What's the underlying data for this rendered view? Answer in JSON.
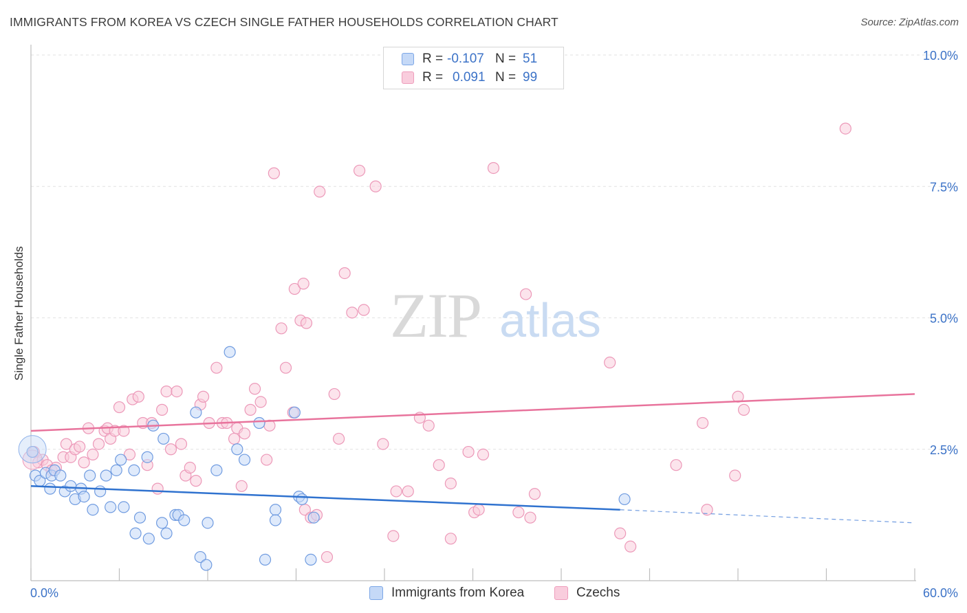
{
  "title": "IMMIGRANTS FROM KOREA VS CZECH SINGLE FATHER HOUSEHOLDS CORRELATION CHART",
  "source": "Source: ZipAtlas.com",
  "watermark": {
    "zip": "ZIP",
    "atlas": "atlas"
  },
  "colors": {
    "blue": "#5b8fdc",
    "pink": "#e8739c",
    "blue_fill": "#c5d9f7",
    "pink_fill": "#f9cddd",
    "axis_label": "#3b72c7"
  },
  "legend": {
    "rows": [
      {
        "r_label": "R = ",
        "r_value": "-0.107",
        "n_label": "N = ",
        "n_value": "51"
      },
      {
        "r_label": "R = ",
        "r_value": "0.091",
        "n_label": "N = ",
        "n_value": "99"
      }
    ]
  },
  "bottom_legend": [
    "Immigrants from Korea",
    "Czechs"
  ],
  "chart_data": {
    "type": "scatter",
    "title": "IMMIGRANTS FROM KOREA VS CZECH SINGLE FATHER HOUSEHOLDS CORRELATION CHART",
    "xlabel": "",
    "ylabel": "Single Father Households",
    "xlim": [
      0,
      60
    ],
    "ylim": [
      0,
      10
    ],
    "x_tick_labels": [
      "0.0%",
      "60.0%"
    ],
    "y_ticks": [
      2.5,
      5.0,
      7.5,
      10.0
    ],
    "y_tick_labels": [
      "2.5%",
      "5.0%",
      "7.5%",
      "10.0%"
    ],
    "grid": "horizontal dashed",
    "legend_position": "top-center",
    "series": [
      {
        "name": "Immigrants from Korea",
        "color": "#5b8fdc",
        "r": -0.107,
        "n": 51,
        "trend": {
          "x0": 0,
          "y0": 1.8,
          "x1": 40,
          "y1": 1.35,
          "dash_to_x": 60,
          "dash_to_y": 1.1
        },
        "points": [
          [
            0.1,
            2.45
          ],
          [
            0.3,
            2.0
          ],
          [
            0.6,
            1.9
          ],
          [
            1.0,
            2.05
          ],
          [
            1.3,
            1.75
          ],
          [
            1.4,
            2.0
          ],
          [
            1.6,
            2.1
          ],
          [
            2.0,
            2.0
          ],
          [
            2.3,
            1.7
          ],
          [
            2.7,
            1.8
          ],
          [
            3.0,
            1.55
          ],
          [
            3.4,
            1.75
          ],
          [
            3.6,
            1.6
          ],
          [
            4.0,
            2.0
          ],
          [
            4.2,
            1.35
          ],
          [
            4.7,
            1.7
          ],
          [
            5.1,
            2.0
          ],
          [
            5.4,
            1.4
          ],
          [
            5.8,
            2.1
          ],
          [
            6.1,
            2.3
          ],
          [
            6.3,
            1.4
          ],
          [
            7.0,
            2.1
          ],
          [
            7.1,
            0.9
          ],
          [
            7.4,
            1.2
          ],
          [
            7.9,
            2.35
          ],
          [
            8.0,
            0.8
          ],
          [
            8.3,
            2.95
          ],
          [
            8.9,
            1.1
          ],
          [
            9.0,
            2.7
          ],
          [
            9.2,
            0.9
          ],
          [
            9.8,
            1.25
          ],
          [
            10.0,
            1.25
          ],
          [
            10.4,
            1.15
          ],
          [
            11.2,
            3.2
          ],
          [
            11.5,
            0.45
          ],
          [
            11.9,
            0.3
          ],
          [
            12.0,
            1.1
          ],
          [
            12.6,
            2.1
          ],
          [
            13.5,
            4.35
          ],
          [
            14.0,
            2.5
          ],
          [
            14.5,
            2.3
          ],
          [
            15.5,
            3.0
          ],
          [
            15.9,
            0.4
          ],
          [
            16.6,
            1.35
          ],
          [
            16.6,
            1.15
          ],
          [
            17.9,
            3.2
          ],
          [
            18.2,
            1.6
          ],
          [
            18.4,
            1.55
          ],
          [
            19.0,
            0.4
          ],
          [
            19.2,
            1.2
          ],
          [
            40.3,
            1.55
          ]
        ]
      },
      {
        "name": "Czechs",
        "color": "#e8739c",
        "r": 0.091,
        "n": 99,
        "trend": {
          "x0": 0,
          "y0": 2.85,
          "x1": 60,
          "y1": 3.55
        },
        "points": [
          [
            0.2,
            2.45
          ],
          [
            0.5,
            2.25
          ],
          [
            0.8,
            2.3
          ],
          [
            1.1,
            2.2
          ],
          [
            1.4,
            2.1
          ],
          [
            1.7,
            2.15
          ],
          [
            2.2,
            2.35
          ],
          [
            2.4,
            2.6
          ],
          [
            2.7,
            2.35
          ],
          [
            3.0,
            2.5
          ],
          [
            3.3,
            2.55
          ],
          [
            3.6,
            2.25
          ],
          [
            3.9,
            2.9
          ],
          [
            4.2,
            2.4
          ],
          [
            4.6,
            2.6
          ],
          [
            5.0,
            2.85
          ],
          [
            5.2,
            2.9
          ],
          [
            5.4,
            2.7
          ],
          [
            5.7,
            2.85
          ],
          [
            6.0,
            3.3
          ],
          [
            6.3,
            2.85
          ],
          [
            6.7,
            2.4
          ],
          [
            6.9,
            3.45
          ],
          [
            7.3,
            3.5
          ],
          [
            7.6,
            3.0
          ],
          [
            7.9,
            2.2
          ],
          [
            8.2,
            3.0
          ],
          [
            8.6,
            1.75
          ],
          [
            8.9,
            3.25
          ],
          [
            9.2,
            3.6
          ],
          [
            9.5,
            2.5
          ],
          [
            9.9,
            3.6
          ],
          [
            10.2,
            2.6
          ],
          [
            10.5,
            2.0
          ],
          [
            10.8,
            2.15
          ],
          [
            11.2,
            1.9
          ],
          [
            11.5,
            3.35
          ],
          [
            11.7,
            3.5
          ],
          [
            12.1,
            3.0
          ],
          [
            12.6,
            4.05
          ],
          [
            13.0,
            3.0
          ],
          [
            13.3,
            3.0
          ],
          [
            13.8,
            2.7
          ],
          [
            14.0,
            2.9
          ],
          [
            14.3,
            1.8
          ],
          [
            14.5,
            2.8
          ],
          [
            14.9,
            3.25
          ],
          [
            15.2,
            3.65
          ],
          [
            15.6,
            3.4
          ],
          [
            16.0,
            2.3
          ],
          [
            16.2,
            2.95
          ],
          [
            16.5,
            7.75
          ],
          [
            17.0,
            4.8
          ],
          [
            17.3,
            4.05
          ],
          [
            17.8,
            3.2
          ],
          [
            17.9,
            5.55
          ],
          [
            18.3,
            4.95
          ],
          [
            18.5,
            5.65
          ],
          [
            18.7,
            4.9
          ],
          [
            18.6,
            1.35
          ],
          [
            19.0,
            1.2
          ],
          [
            19.4,
            1.25
          ],
          [
            19.6,
            7.4
          ],
          [
            20.1,
            0.45
          ],
          [
            20.6,
            3.55
          ],
          [
            20.9,
            2.7
          ],
          [
            21.3,
            5.85
          ],
          [
            21.8,
            5.1
          ],
          [
            22.3,
            7.8
          ],
          [
            22.6,
            5.15
          ],
          [
            23.4,
            7.5
          ],
          [
            23.9,
            2.6
          ],
          [
            24.6,
            0.85
          ],
          [
            24.8,
            1.7
          ],
          [
            25.6,
            1.7
          ],
          [
            26.4,
            3.1
          ],
          [
            27.0,
            2.95
          ],
          [
            27.7,
            2.2
          ],
          [
            28.5,
            1.85
          ],
          [
            28.5,
            0.8
          ],
          [
            29.7,
            2.45
          ],
          [
            30.1,
            1.3
          ],
          [
            30.4,
            1.35
          ],
          [
            30.7,
            2.4
          ],
          [
            31.4,
            7.85
          ],
          [
            33.1,
            1.3
          ],
          [
            33.6,
            5.45
          ],
          [
            33.9,
            1.2
          ],
          [
            34.2,
            1.65
          ],
          [
            39.3,
            4.15
          ],
          [
            40.0,
            0.9
          ],
          [
            40.7,
            0.65
          ],
          [
            43.8,
            2.2
          ],
          [
            45.6,
            3.0
          ],
          [
            45.9,
            1.35
          ],
          [
            47.8,
            2.0
          ],
          [
            48.0,
            3.5
          ],
          [
            48.4,
            3.25
          ],
          [
            55.3,
            8.6
          ]
        ]
      }
    ]
  }
}
